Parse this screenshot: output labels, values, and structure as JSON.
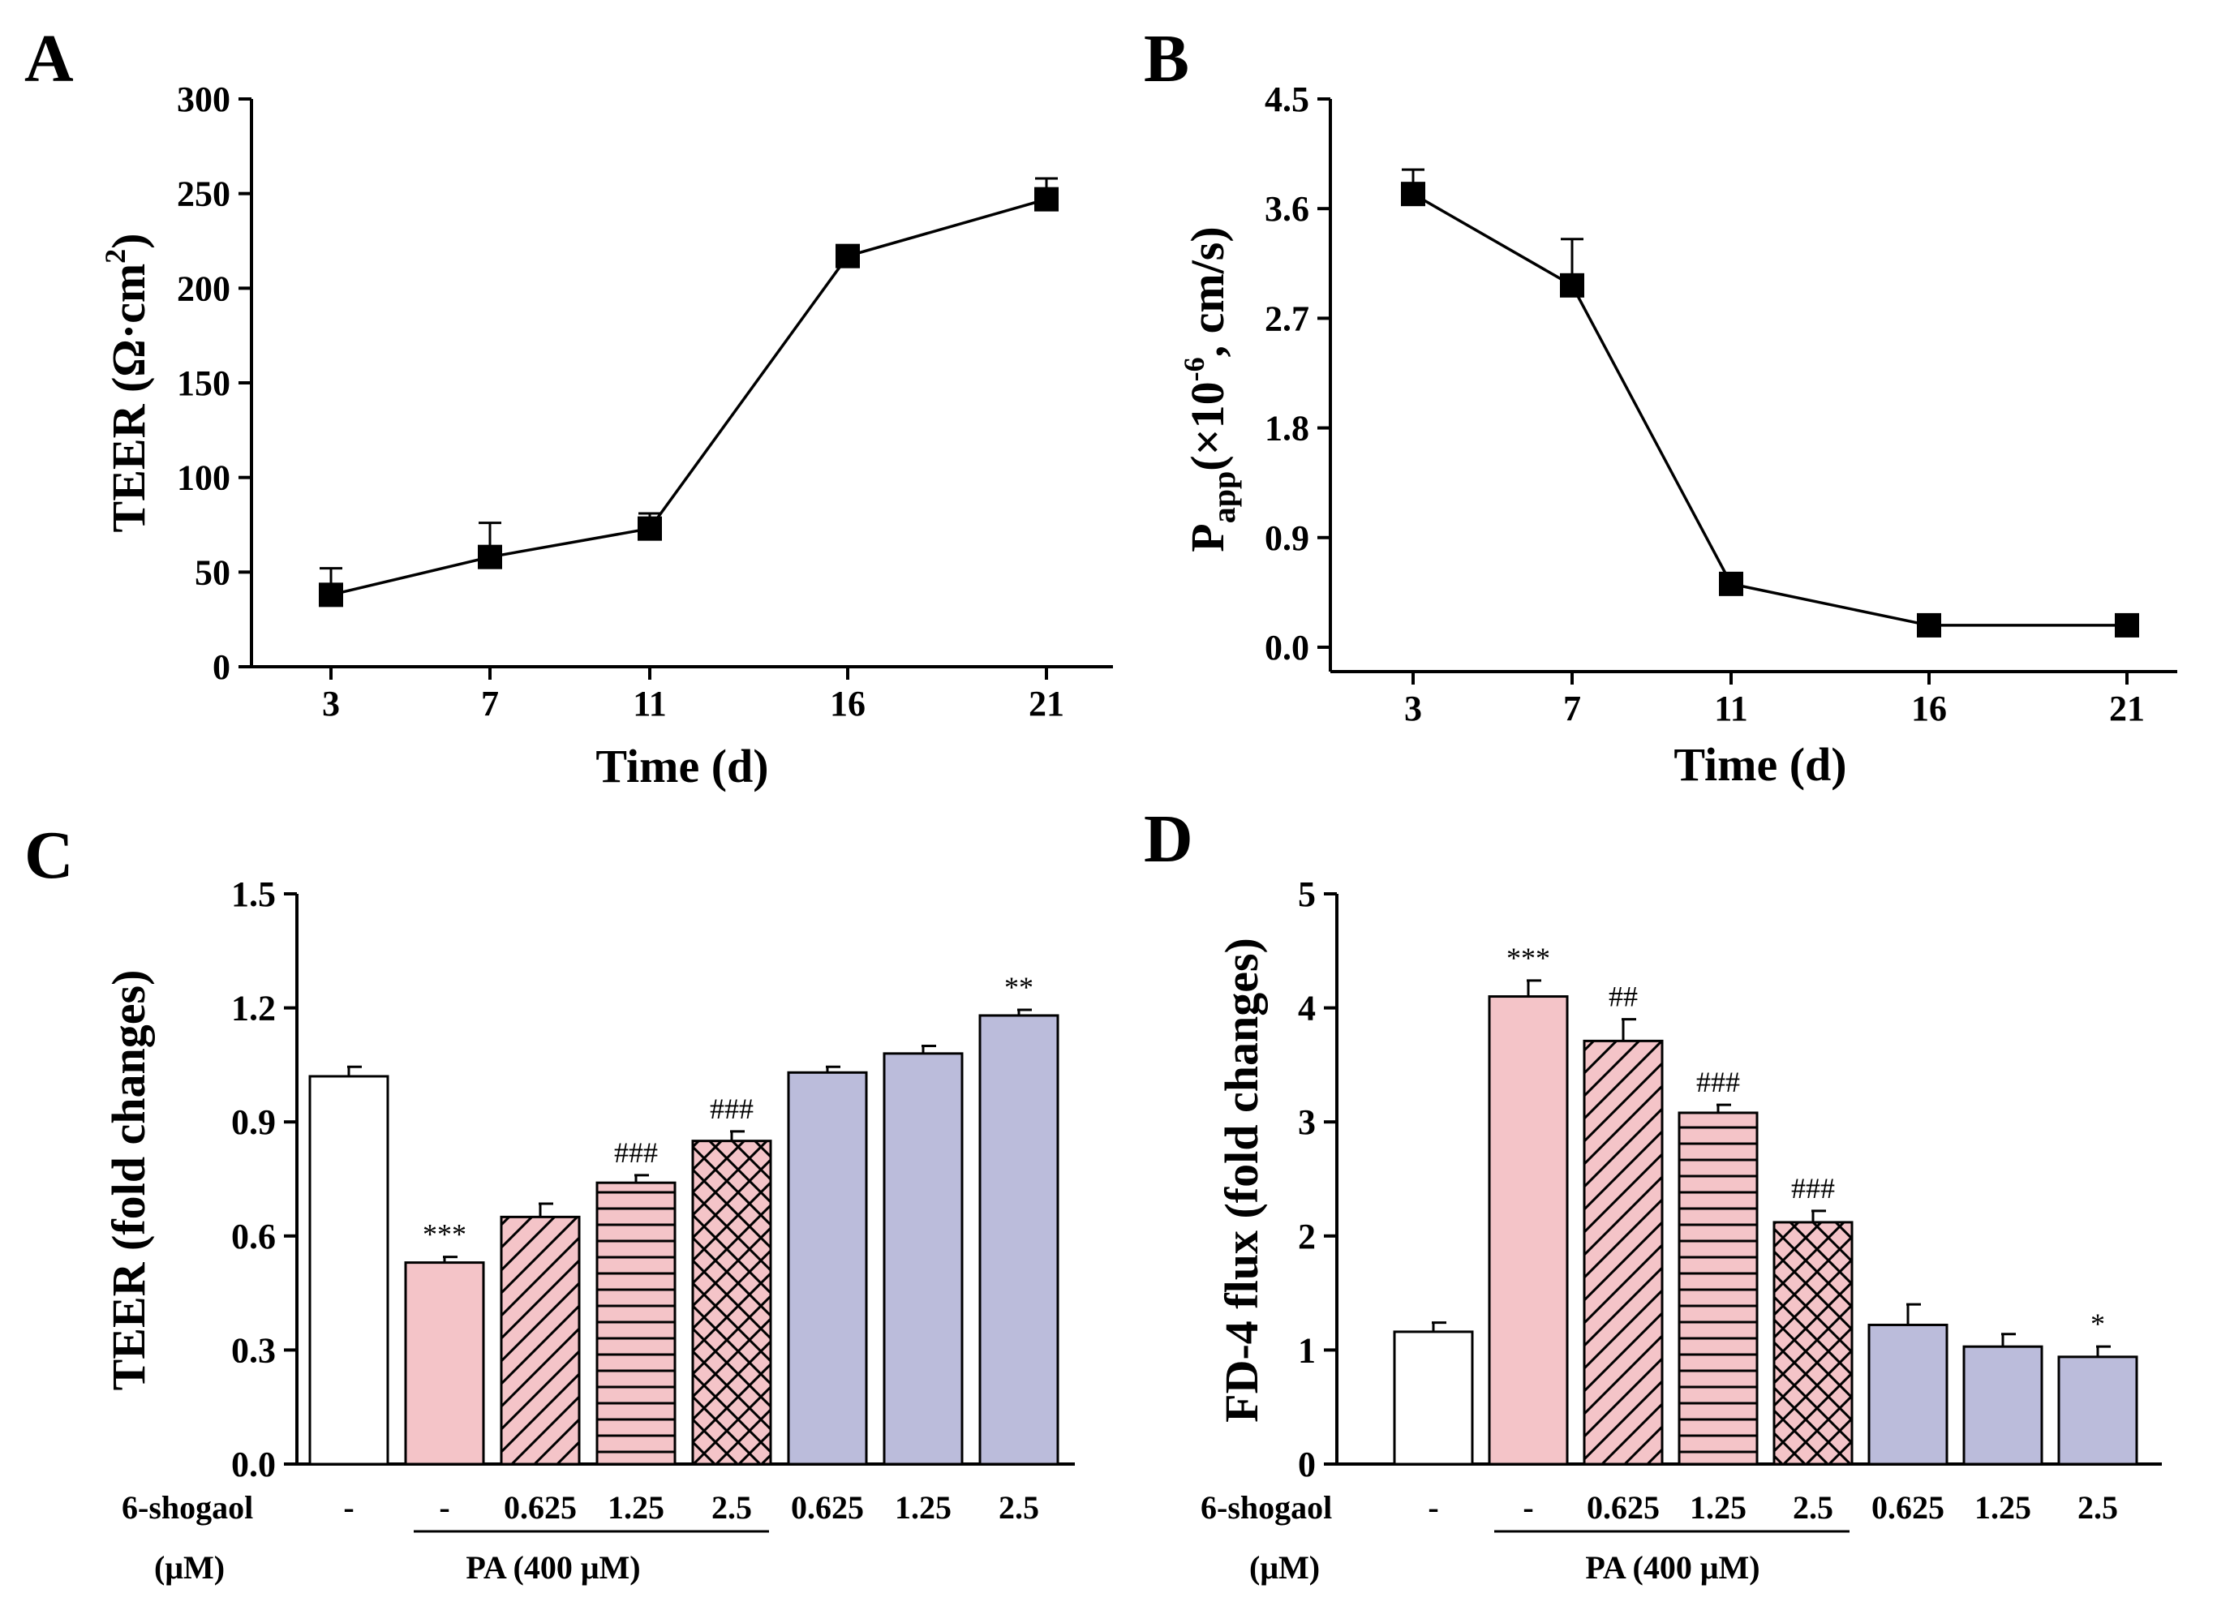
{
  "colors": {
    "pink": "#f4c4c8",
    "lavender": "#bbbcdb",
    "control": "#ffffff",
    "line": "#000000"
  },
  "chart_data": [
    {
      "panel": "A",
      "type": "line",
      "xlabel": "Time (d)",
      "ylabel": "TEER (Ω·cm",
      "ylabel_sup": "2",
      "ylabel_end": ")",
      "categories": [
        "3",
        "7",
        "11",
        "16",
        "21"
      ],
      "values": [
        38,
        58,
        73,
        217,
        247
      ],
      "errors": [
        14,
        18,
        8,
        5,
        11
      ],
      "ylim": [
        0,
        300
      ],
      "yticks": [
        "0",
        "50",
        "100",
        "150",
        "200",
        "250",
        "300"
      ]
    },
    {
      "panel": "B",
      "type": "line",
      "xlabel": "Time (d)",
      "ylabel_main": "P",
      "ylabel_sub": "app",
      "ylabel_mid": "(×10",
      "ylabel_sup": "-6",
      "ylabel_end": ", cm/s)",
      "categories": [
        "3",
        "7",
        "11",
        "16",
        "21"
      ],
      "values": [
        3.72,
        2.97,
        0.52,
        0.18,
        0.18
      ],
      "errors": [
        0.2,
        0.38,
        0.02,
        0.02,
        0.02
      ],
      "ylim": [
        -0.2,
        4.5
      ],
      "yticks": [
        "0.0",
        "0.9",
        "1.8",
        "2.7",
        "3.6",
        "4.5"
      ]
    },
    {
      "panel": "C",
      "type": "bar",
      "ylabel": "TEER (fold changes)",
      "values": [
        1.02,
        0.53,
        0.65,
        0.74,
        0.85,
        1.03,
        1.08,
        1.18
      ],
      "errors": [
        0.025,
        0.015,
        0.035,
        0.02,
        0.025,
        0.015,
        0.02,
        0.015
      ],
      "annotations": [
        "",
        "***",
        "",
        "###",
        "###",
        "",
        "",
        "**"
      ],
      "fills": [
        "control",
        "pink",
        "pink",
        "pink",
        "pink",
        "lavender",
        "lavender",
        "lavender"
      ],
      "patterns": [
        "none",
        "none",
        "diag",
        "horiz",
        "cross",
        "none",
        "none",
        "none"
      ],
      "ylim": [
        0,
        1.5
      ],
      "yticks": [
        "0.0",
        "0.3",
        "0.6",
        "0.9",
        "1.2",
        "1.5"
      ],
      "x_row_label": "6-shogaol",
      "x_unit_label": "(μM)",
      "tick_labels": [
        "-",
        "-",
        "0.625",
        "1.25",
        "2.5",
        "0.625",
        "1.25",
        "2.5"
      ],
      "group_label": "PA (400 μM)"
    },
    {
      "panel": "D",
      "type": "bar",
      "ylabel": "FD-4 flux (fold changes)",
      "values": [
        1.16,
        4.1,
        3.71,
        3.08,
        2.12,
        1.22,
        1.03,
        0.94
      ],
      "errors": [
        0.08,
        0.14,
        0.19,
        0.07,
        0.1,
        0.18,
        0.11,
        0.09
      ],
      "annotations": [
        "",
        "***",
        "##",
        "###",
        "###",
        "",
        "",
        "*"
      ],
      "fills": [
        "control",
        "pink",
        "pink",
        "pink",
        "pink",
        "lavender",
        "lavender",
        "lavender"
      ],
      "patterns": [
        "none",
        "none",
        "diag",
        "horiz",
        "cross",
        "none",
        "none",
        "none"
      ],
      "ylim": [
        0,
        5
      ],
      "yticks": [
        "0",
        "1",
        "2",
        "3",
        "4",
        "5"
      ],
      "x_row_label": "6-shogaol",
      "x_unit_label": "(μM)",
      "tick_labels": [
        "-",
        "-",
        "0.625",
        "1.25",
        "2.5",
        "0.625",
        "1.25",
        "2.5"
      ],
      "group_label": "PA (400 μM)"
    }
  ]
}
